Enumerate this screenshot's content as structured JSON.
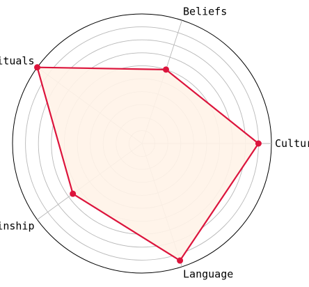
{
  "chart_data": {
    "type": "radar",
    "axes": [
      "Culture",
      "Beliefs",
      "Rituals",
      "Kinship",
      "Language"
    ],
    "values": [
      0.9,
      0.6,
      1.0,
      0.66,
      0.95
    ],
    "range": [
      0,
      1
    ],
    "grid": true,
    "grid_rings": 9,
    "legend": "none",
    "colors": {
      "line": "#dc143c",
      "fill": "#fff3e8",
      "grid": "#b8b8b8",
      "frame": "#000000"
    }
  }
}
